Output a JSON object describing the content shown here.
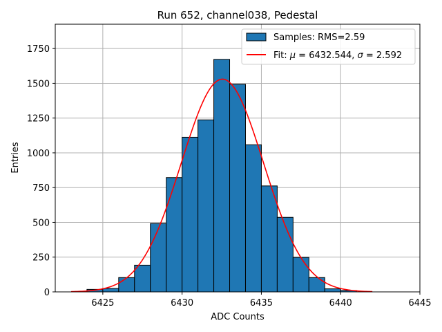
{
  "chart_data": {
    "type": "bar",
    "title": "Run 652, channel038, Pedestal",
    "xlabel": "ADC Counts",
    "ylabel": "Entries",
    "xlim": [
      6422,
      6445
    ],
    "ylim": [
      0,
      1925
    ],
    "xticks": [
      6425,
      6430,
      6435,
      6440,
      6445
    ],
    "yticks": [
      0,
      250,
      500,
      750,
      1000,
      1250,
      1500,
      1750
    ],
    "grid": true,
    "legend_position": "top-right",
    "histogram": {
      "name": "Samples: RMS=2.59",
      "color": "#1f77b4",
      "edgecolor": "#000000",
      "bin_edges": [
        6424,
        6425,
        6426,
        6427,
        6428,
        6429,
        6430,
        6431,
        6432,
        6433,
        6434,
        6435,
        6436,
        6437,
        6438,
        6439,
        6440,
        6441
      ],
      "counts": [
        18,
        25,
        103,
        192,
        492,
        822,
        1112,
        1237,
        1672,
        1493,
        1058,
        762,
        536,
        248,
        103,
        22,
        10
      ]
    },
    "fit": {
      "name": "Fit: μ = 6432.544, σ = 2.592",
      "label_parts": [
        "Fit: ",
        "μ",
        " = 6432.544, ",
        "σ",
        " = 2.592"
      ],
      "color": "#ff0000",
      "mu": 6432.544,
      "sigma": 2.592,
      "amplitude": 1530,
      "x_range": [
        6423,
        6442
      ]
    }
  }
}
